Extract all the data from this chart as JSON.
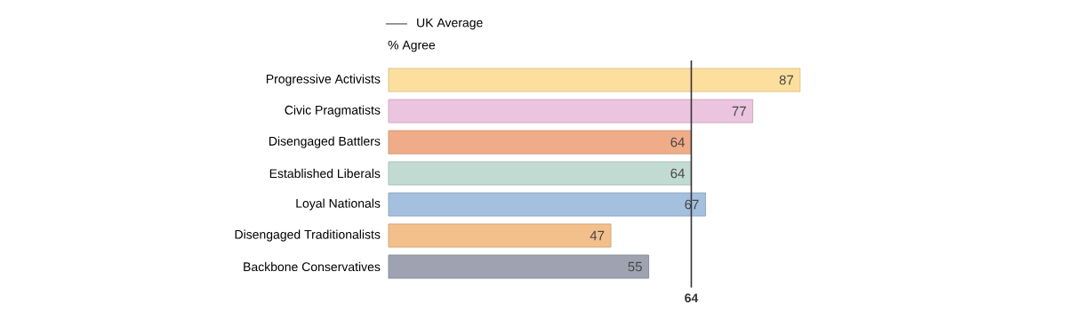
{
  "chart_data": {
    "type": "bar",
    "orientation": "horizontal",
    "subtitle": "% Agree",
    "categories": [
      "Progressive Activists",
      "Civic Pragmatists",
      "Disengaged Battlers",
      "Established Liberals",
      "Loyal Nationals",
      "Disengaged Traditionalists",
      "Backbone Conservatives"
    ],
    "values": [
      87,
      77,
      64,
      64,
      67,
      47,
      55
    ],
    "colors": [
      "#fcdf9e",
      "#ebc4df",
      "#f0ab88",
      "#c1dbd2",
      "#a5bfde",
      "#f3bf8b",
      "#9ea2b1"
    ],
    "tick_labels": "y",
    "data_labels": true,
    "ref_lines": [
      {
        "axis": "x",
        "value": 64,
        "label": "UK Average",
        "color": "#333333"
      }
    ],
    "annotations": [
      "64"
    ]
  }
}
